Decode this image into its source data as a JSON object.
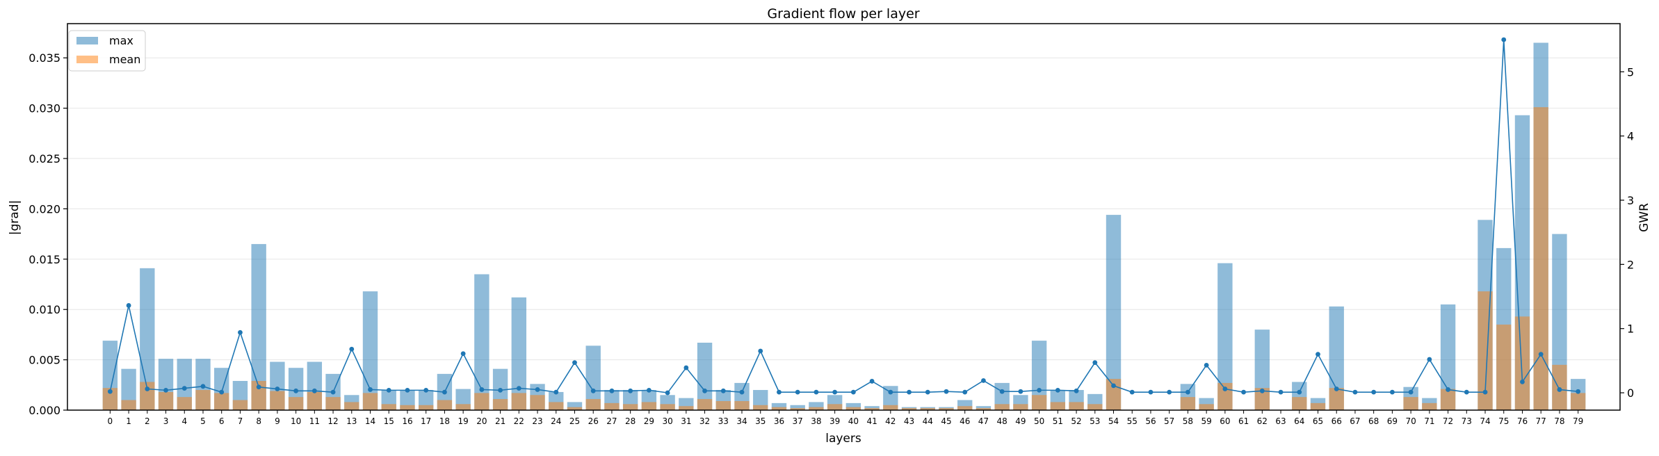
{
  "chart_data": {
    "type": "bar",
    "title": "Gradient flow per layer",
    "xlabel": "layers",
    "ylabel": "|grad|",
    "y2label": "GWR",
    "ylim": [
      0,
      0.0384
    ],
    "y2lim": [
      -0.27,
      5.75
    ],
    "yticks": [
      "0.000",
      "0.005",
      "0.010",
      "0.015",
      "0.020",
      "0.025",
      "0.030",
      "0.035"
    ],
    "y2ticks": [
      "0",
      "1",
      "2",
      "3",
      "4",
      "5"
    ],
    "grid": true,
    "legend_position": "top-left",
    "categories": [
      "0",
      "1",
      "2",
      "3",
      "4",
      "5",
      "6",
      "7",
      "8",
      "9",
      "10",
      "11",
      "12",
      "13",
      "14",
      "15",
      "16",
      "17",
      "18",
      "19",
      "20",
      "21",
      "22",
      "23",
      "24",
      "25",
      "26",
      "27",
      "28",
      "29",
      "30",
      "31",
      "32",
      "33",
      "34",
      "35",
      "36",
      "37",
      "38",
      "39",
      "40",
      "41",
      "42",
      "43",
      "44",
      "45",
      "46",
      "47",
      "48",
      "49",
      "50",
      "51",
      "52",
      "53",
      "54",
      "55",
      "56",
      "57",
      "58",
      "59",
      "60",
      "61",
      "62",
      "63",
      "64",
      "65",
      "66",
      "67",
      "68",
      "69",
      "70",
      "71",
      "72",
      "73",
      "74",
      "75",
      "76",
      "77",
      "78",
      "79"
    ],
    "series": [
      {
        "name": "max",
        "color": "#1f77b4",
        "values": [
          0.0069,
          0.0041,
          0.0141,
          0.0051,
          0.0051,
          0.0051,
          0.0042,
          0.0029,
          0.0165,
          0.0048,
          0.0042,
          0.0048,
          0.0036,
          0.0015,
          0.0118,
          0.002,
          0.002,
          0.002,
          0.0036,
          0.0021,
          0.0135,
          0.0041,
          0.0112,
          0.0026,
          0.0018,
          0.0008,
          0.0064,
          0.002,
          0.002,
          0.002,
          0.0015,
          0.0012,
          0.0067,
          0.002,
          0.0027,
          0.002,
          0.0007,
          0.0005,
          0.0008,
          0.0015,
          0.0007,
          0.0004,
          0.0024,
          0.0003,
          0.0003,
          0.0003,
          0.001,
          0.0004,
          0.0027,
          0.0015,
          0.0069,
          0.002,
          0.002,
          0.0016,
          0.0194,
          0,
          0,
          0,
          0.0026,
          0.0012,
          0.0146,
          0,
          0.008,
          0,
          0.0028,
          0.0012,
          0.0103,
          0,
          0,
          0,
          0.0023,
          0.0012,
          0.0105,
          0,
          0.0189,
          0.0161,
          0.0293,
          0.0365,
          0.0175,
          0.0031
        ]
      },
      {
        "name": "mean",
        "color": "#ff7f0e",
        "values": [
          0.0022,
          0.001,
          0.0028,
          0.0018,
          0.0013,
          0.002,
          0.0017,
          0.001,
          0.0029,
          0.0019,
          0.0013,
          0.0018,
          0.0013,
          0.0008,
          0.0017,
          0.0006,
          0.0005,
          0.0005,
          0.001,
          0.0006,
          0.0017,
          0.0011,
          0.0017,
          0.0015,
          0.0008,
          0.0003,
          0.0011,
          0.0007,
          0.0006,
          0.0008,
          0.0006,
          0.0004,
          0.0011,
          0.0009,
          0.0009,
          0.0005,
          0.0003,
          0.0002,
          0.0003,
          0.0006,
          0.0003,
          0.0002,
          0.0005,
          0.0002,
          0.0002,
          0.0002,
          0.0004,
          0.0002,
          0.0006,
          0.0006,
          0.0015,
          0.0008,
          0.0008,
          0.0006,
          0.0031,
          0,
          0,
          0,
          0.0013,
          0.0006,
          0.0027,
          0,
          0.0022,
          0,
          0.0013,
          0.0007,
          0.0022,
          0,
          0,
          0,
          0.0013,
          0.0007,
          0.0021,
          0,
          0.0118,
          0.0085,
          0.0093,
          0.0301,
          0.0045,
          0.0017
        ]
      },
      {
        "name": "GWR",
        "axis": "right",
        "color": "#1f77b4",
        "values": [
          0.02,
          1.36,
          0.06,
          0.04,
          0.07,
          0.1,
          0.01,
          0.94,
          0.09,
          0.06,
          0.03,
          0.03,
          0.01,
          0.68,
          0.05,
          0.04,
          0.04,
          0.04,
          0.01,
          0.61,
          0.05,
          0.04,
          0.07,
          0.05,
          0.01,
          0.47,
          0.03,
          0.03,
          0.03,
          0.04,
          0,
          0.39,
          0.03,
          0.03,
          0.01,
          0.65,
          0.01,
          0.01,
          0.01,
          0.01,
          0.01,
          0.18,
          0.01,
          0.01,
          0.01,
          0.02,
          0.01,
          0.19,
          0.02,
          0.02,
          0.04,
          0.04,
          0.03,
          0.47,
          0.11,
          0.01,
          0.01,
          0.01,
          0.01,
          0.43,
          0.06,
          0.01,
          0.03,
          0.01,
          0.01,
          0.6,
          0.06,
          0.01,
          0.01,
          0.01,
          0.01,
          0.52,
          0.05,
          0.01,
          0.01,
          5.5,
          0.17,
          0.6,
          0.05,
          0.02
        ]
      }
    ]
  }
}
